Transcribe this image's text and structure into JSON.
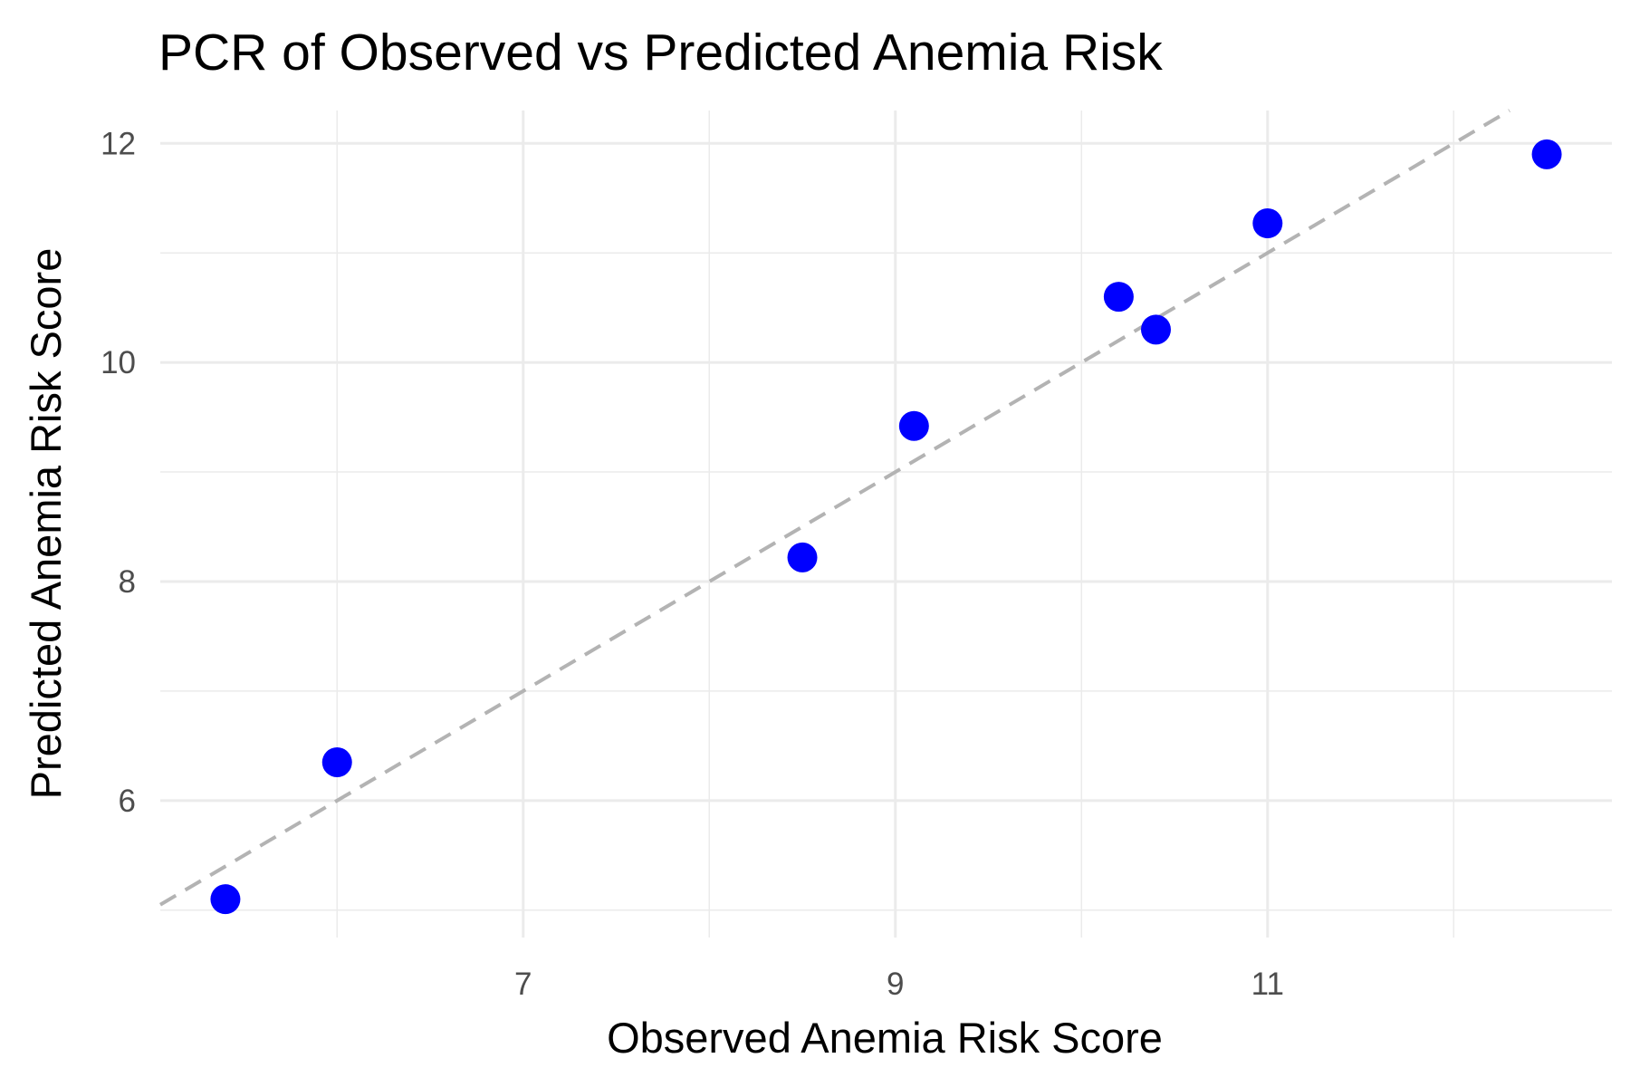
{
  "chart_data": {
    "type": "scatter",
    "title": "PCR of Observed vs Predicted Anemia Risk",
    "xlabel": "Observed Anemia Risk Score",
    "ylabel": "Predicted Anemia Risk Score",
    "xlim": [
      5.05,
      12.85
    ],
    "ylim": [
      4.75,
      12.3
    ],
    "x_ticks": [
      7,
      9,
      11
    ],
    "x_minor": [
      6,
      8,
      10,
      12
    ],
    "y_ticks": [
      6,
      8,
      10,
      12
    ],
    "y_minor": [
      5,
      7,
      9,
      11
    ],
    "grid": true,
    "legend": "none",
    "points": [
      {
        "x": 5.4,
        "y": 5.1
      },
      {
        "x": 6.0,
        "y": 6.35
      },
      {
        "x": 8.5,
        "y": 8.22
      },
      {
        "x": 9.1,
        "y": 9.42
      },
      {
        "x": 10.2,
        "y": 10.6
      },
      {
        "x": 10.4,
        "y": 10.3
      },
      {
        "x": 11.0,
        "y": 11.27
      },
      {
        "x": 12.5,
        "y": 11.9
      }
    ],
    "reference_line": {
      "type": "identity",
      "style": "dashed",
      "color": "#b3b3b3"
    },
    "point_color": "#0000ff",
    "grid_color": "#ebebeb"
  }
}
